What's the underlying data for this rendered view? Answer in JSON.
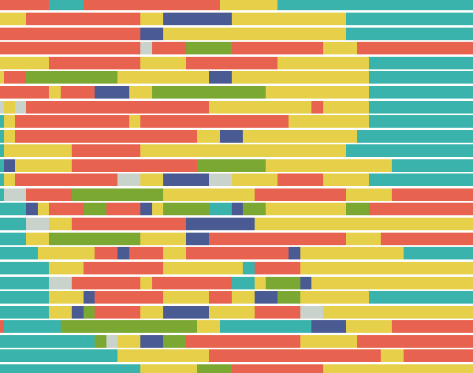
{
  "palette": {
    "R": "#e8634f",
    "T": "#3ab3ac",
    "Y": "#e6d04a",
    "B": "#4a5a92",
    "G": "#7ba833",
    "L": "#c9d3cc"
  }
}
